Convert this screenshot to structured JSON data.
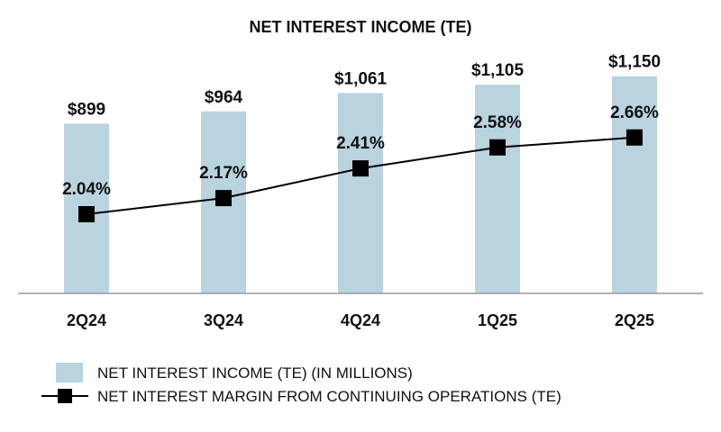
{
  "chart_data": {
    "type": "bar",
    "title": "NET INTEREST INCOME (TE)",
    "categories": [
      "2Q24",
      "3Q24",
      "4Q24",
      "1Q25",
      "2Q25"
    ],
    "series": [
      {
        "name": "NET INTEREST INCOME (TE) (IN MILLIONS)",
        "type": "bar",
        "values": [
          899,
          964,
          1061,
          1105,
          1150
        ],
        "labels": [
          "$899",
          "$964",
          "$1,061",
          "$1,105",
          "$1,150"
        ],
        "color": "#b9d3df"
      },
      {
        "name": "NET INTEREST MARGIN FROM CONTINUING OPERATIONS (TE)",
        "type": "line",
        "values": [
          2.04,
          2.17,
          2.41,
          2.58,
          2.66
        ],
        "labels": [
          "2.04%",
          "2.17%",
          "2.41%",
          "2.58%",
          "2.66%"
        ],
        "color": "#000000"
      }
    ],
    "xlabel": "",
    "ylabel": "",
    "grid": false,
    "legend": "bottom-left"
  }
}
